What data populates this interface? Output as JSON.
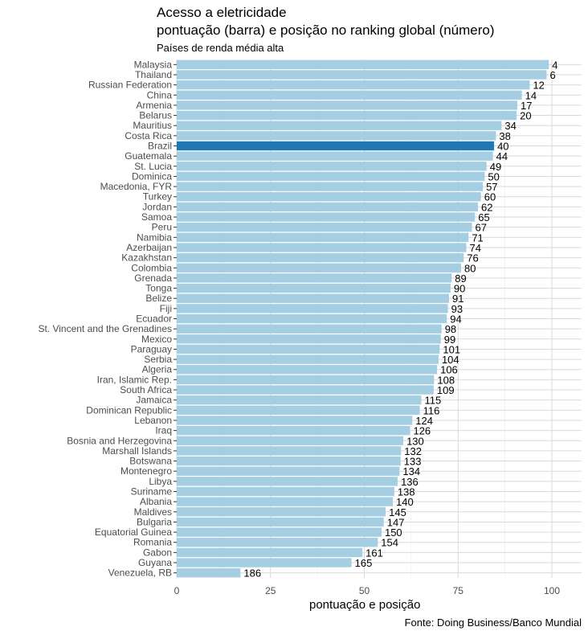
{
  "chart_data": {
    "type": "bar",
    "orientation": "horizontal",
    "title_line1": "Acesso a eletricidade",
    "title_line2": "pontuação (barra) e posição no ranking global (número)",
    "subtitle": "Países de renda média alta",
    "xlabel": "pontuação e posição",
    "caption": "Fonte: Doing Business/Banco Mundial",
    "xlim": [
      0,
      107
    ],
    "xticks": [
      0,
      25,
      50,
      75,
      100
    ],
    "highlight": "Brazil",
    "colors": {
      "bar": "#a6cee3",
      "highlight": "#1f78b4"
    },
    "categories": [
      "Malaysia",
      "Thailand",
      "Russian Federation",
      "China",
      "Armenia",
      "Belarus",
      "Mauritius",
      "Costa Rica",
      "Brazil",
      "Guatemala",
      "St. Lucia",
      "Dominica",
      "Macedonia, FYR",
      "Turkey",
      "Jordan",
      "Samoa",
      "Peru",
      "Namibia",
      "Azerbaijan",
      "Kazakhstan",
      "Colombia",
      "Grenada",
      "Tonga",
      "Belize",
      "Fiji",
      "Ecuador",
      "St. Vincent and the Grenadines",
      "Mexico",
      "Paraguay",
      "Serbia",
      "Algeria",
      "Iran, Islamic Rep.",
      "South Africa",
      "Jamaica",
      "Dominican Republic",
      "Lebanon",
      "Iraq",
      "Bosnia and Herzegovina",
      "Marshall Islands",
      "Botswana",
      "Montenegro",
      "Libya",
      "Suriname",
      "Albania",
      "Maldives",
      "Bulgaria",
      "Equatorial Guinea",
      "Romania",
      "Gabon",
      "Guyana",
      "Venezuela, RB"
    ],
    "values": [
      99.2,
      98.6,
      94.1,
      92.0,
      90.8,
      90.6,
      86.6,
      85.1,
      84.6,
      84.3,
      82.6,
      82.1,
      81.6,
      81.1,
      80.3,
      79.5,
      78.7,
      77.8,
      77.2,
      76.5,
      75.8,
      73.3,
      73.0,
      72.6,
      72.3,
      72.0,
      70.6,
      70.4,
      70.1,
      69.8,
      69.4,
      68.6,
      68.5,
      65.2,
      64.8,
      62.8,
      62.2,
      60.4,
      59.8,
      59.7,
      59.4,
      58.9,
      58.0,
      57.6,
      55.7,
      55.2,
      54.6,
      53.6,
      49.5,
      46.6,
      17.0
    ],
    "ranks": [
      4,
      6,
      12,
      14,
      17,
      20,
      34,
      38,
      40,
      44,
      49,
      50,
      57,
      60,
      62,
      65,
      67,
      71,
      74,
      76,
      80,
      89,
      90,
      91,
      93,
      94,
      98,
      99,
      101,
      104,
      106,
      108,
      109,
      115,
      116,
      124,
      126,
      130,
      132,
      133,
      134,
      136,
      138,
      140,
      145,
      147,
      150,
      154,
      161,
      165,
      186
    ]
  }
}
